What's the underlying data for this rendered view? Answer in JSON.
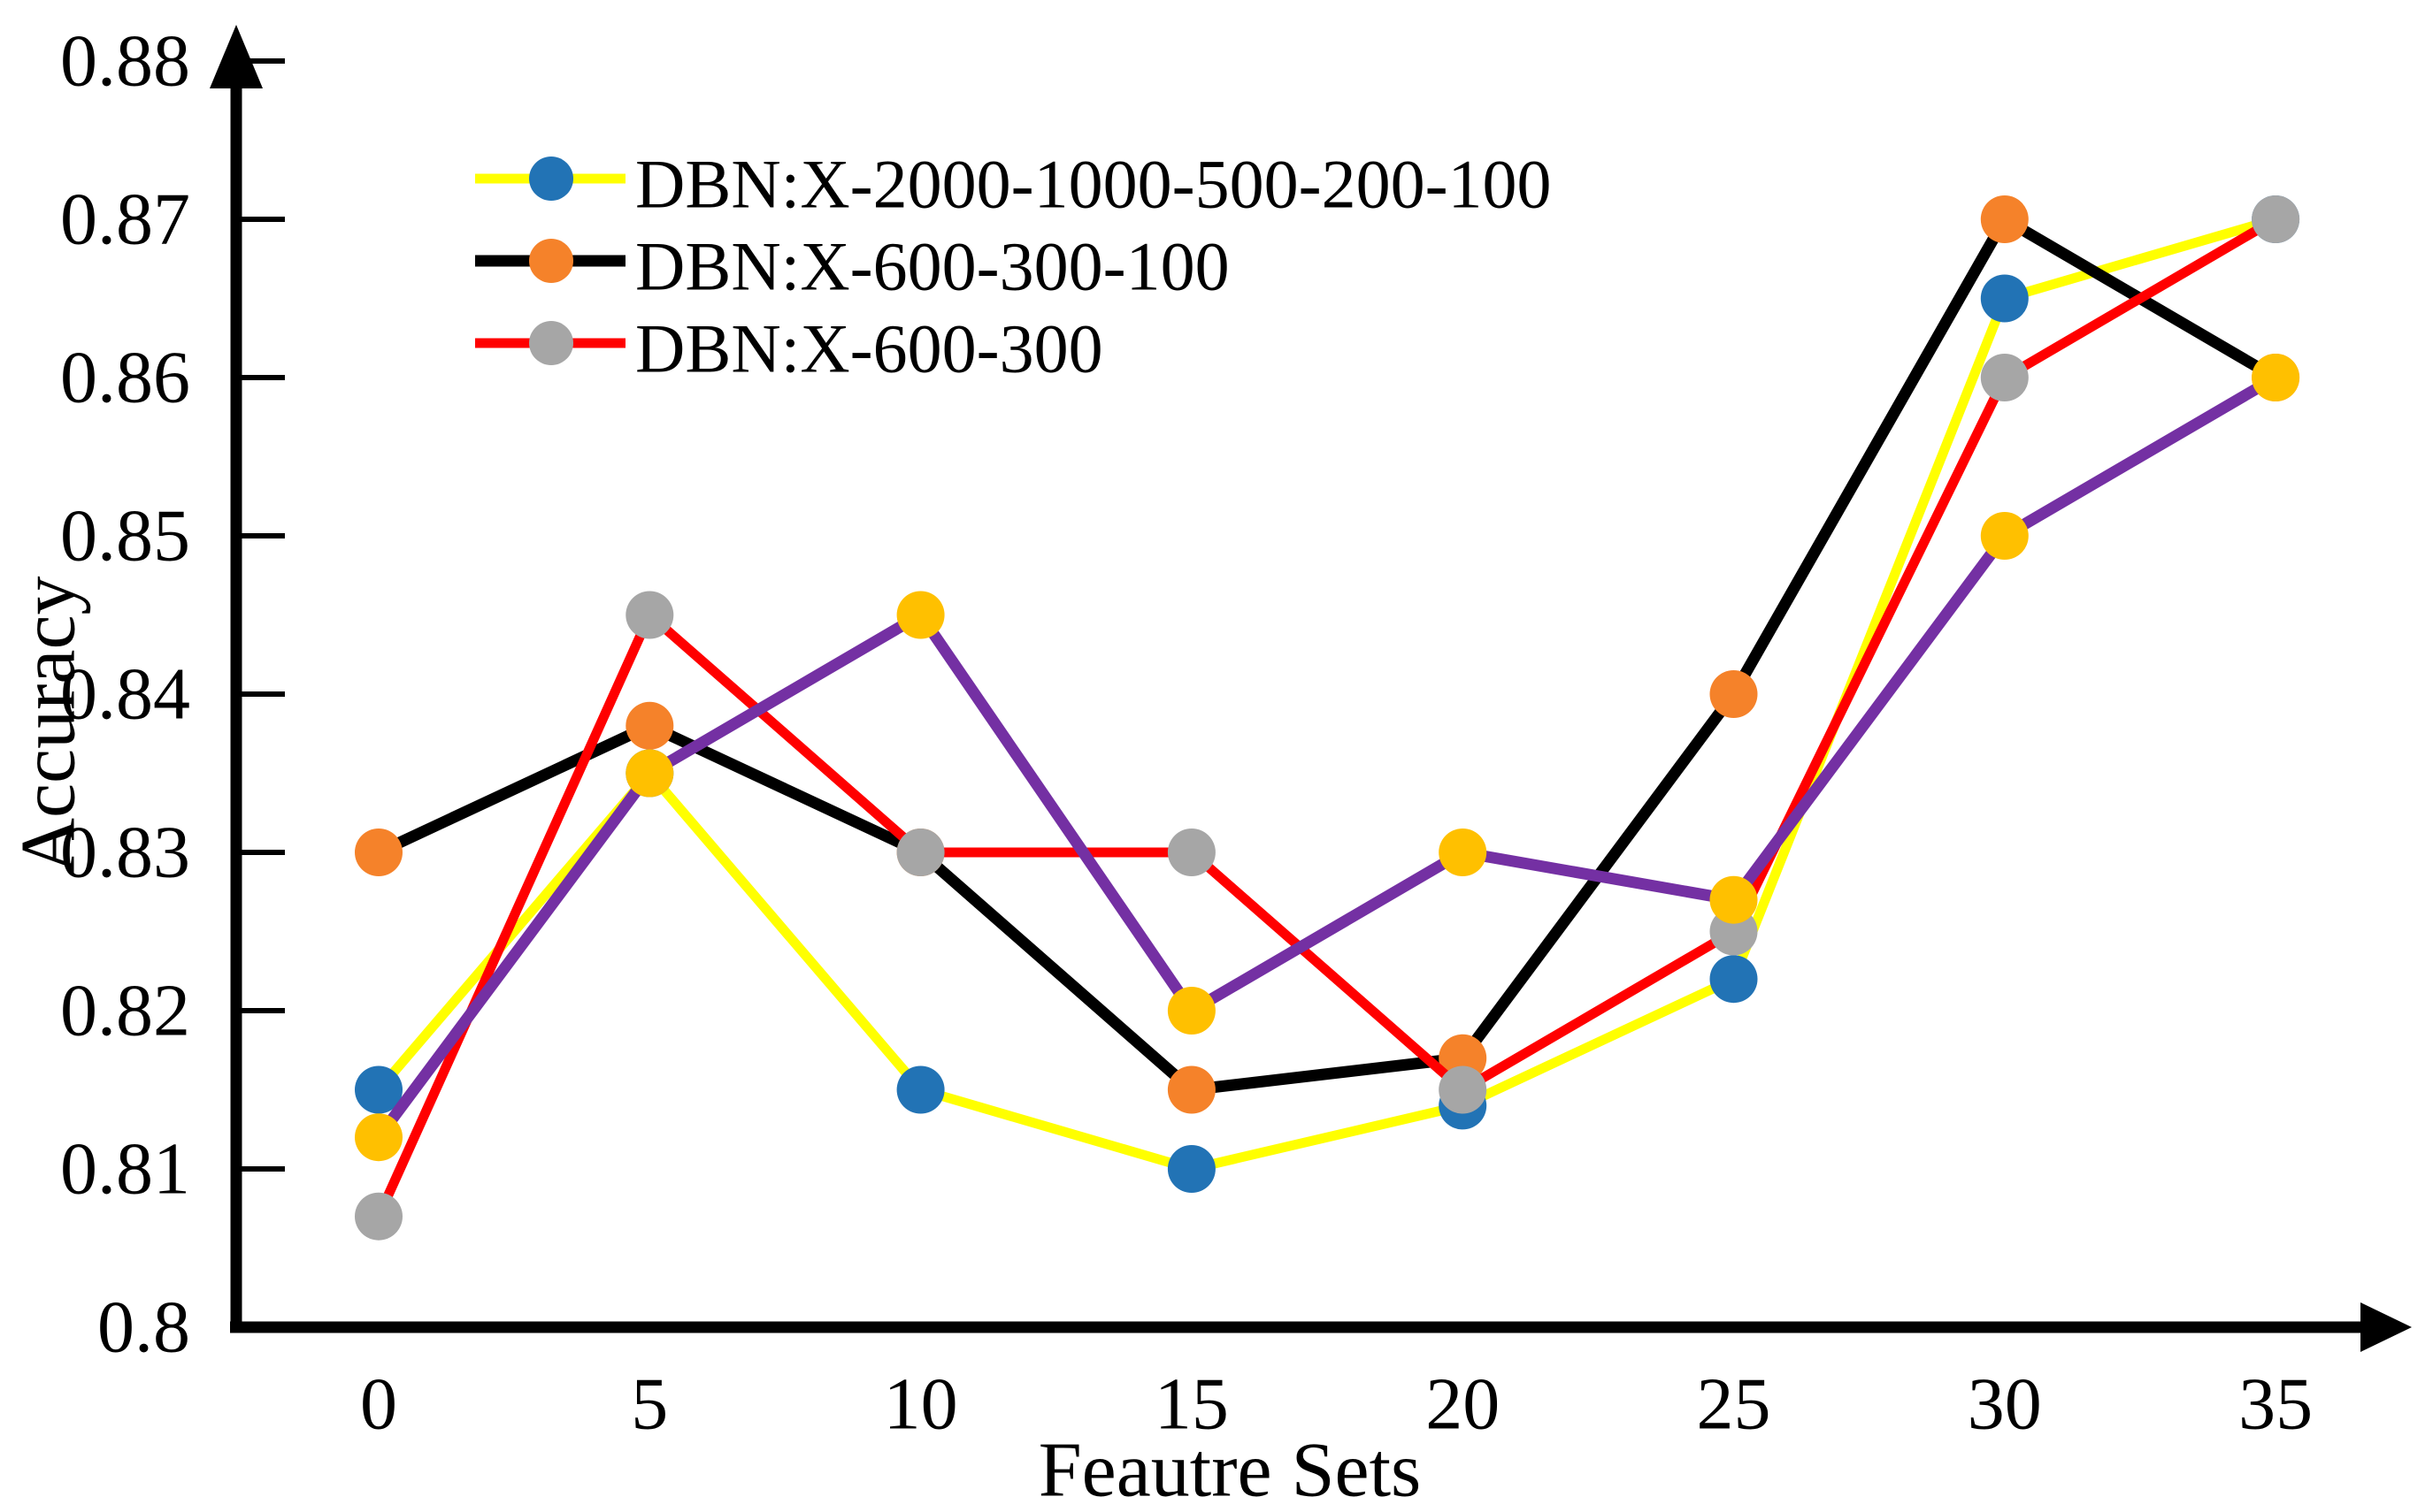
{
  "chart_data": {
    "type": "line",
    "title": "",
    "xlabel": "Feautre Sets",
    "ylabel": "Accuracy",
    "x": [
      0,
      5,
      10,
      15,
      20,
      25,
      30,
      35
    ],
    "x_tick_labels": [
      "0",
      "5",
      "10",
      "15",
      "20",
      "25",
      "30",
      "35"
    ],
    "y_tick_labels": [
      "0.8",
      "0.81",
      "0.82",
      "0.83",
      "0.84",
      "0.85",
      "0.86",
      "0.87",
      "0.88"
    ],
    "y_tick_values": [
      0.8,
      0.81,
      0.82,
      0.83,
      0.84,
      0.85,
      0.86,
      0.87,
      0.88
    ],
    "xlim": [
      0,
      35
    ],
    "ylim": [
      0.8,
      0.88
    ],
    "grid": false,
    "legend_position": "upper-left-inside",
    "axis_color": "#000000",
    "series": [
      {
        "name": "DBN:X-2000-1000-500-200-100",
        "in_legend": true,
        "line_color": "#FFFF00",
        "marker_color": "#2273B5",
        "line_width": 11,
        "values": [
          0.815,
          0.835,
          0.815,
          0.81,
          0.814,
          0.822,
          0.865,
          0.87
        ]
      },
      {
        "name": "DBN:X-600-300-100",
        "in_legend": true,
        "line_color": "#000000",
        "marker_color": "#F5822A",
        "line_width": 13,
        "values": [
          0.83,
          0.838,
          0.83,
          0.815,
          0.817,
          0.84,
          0.87,
          0.86
        ]
      },
      {
        "name": "DBN:X-600-300",
        "in_legend": true,
        "line_color": "#FF0000",
        "marker_color": "#A6A6A6",
        "line_width": 11,
        "values": [
          0.807,
          0.845,
          0.83,
          0.83,
          0.815,
          0.825,
          0.86,
          0.87
        ]
      },
      {
        "name": "",
        "in_legend": false,
        "line_color": "#7430A3",
        "marker_color": "#FFC000",
        "line_width": 13,
        "values": [
          0.812,
          0.835,
          0.845,
          0.82,
          0.83,
          0.827,
          0.85,
          0.86
        ]
      }
    ]
  }
}
